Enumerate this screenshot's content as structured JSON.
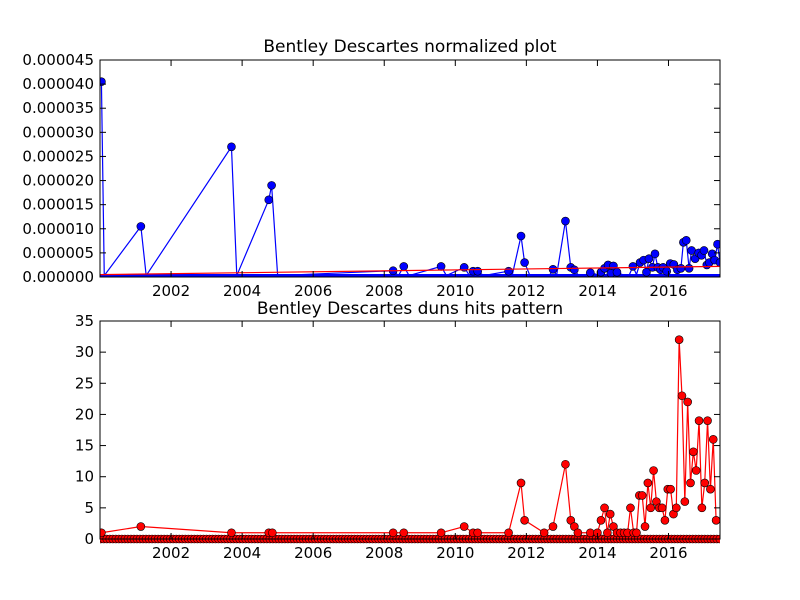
{
  "chart_data": [
    {
      "type": "line",
      "title": "Bentley Descartes normalized plot",
      "xlabel": "",
      "ylabel": "",
      "xlim": [
        2000.0,
        2017.45
      ],
      "ylim": [
        0,
        4.5e-05
      ],
      "xticks": [
        2002,
        2004,
        2006,
        2008,
        2010,
        2012,
        2014,
        2016
      ],
      "yticks": [
        "0.000000",
        "0.000005",
        "0.000010",
        "0.000015",
        "0.000020",
        "0.000025",
        "0.000030",
        "0.000035",
        "0.000040",
        "0.000045"
      ],
      "grid": false,
      "series": [
        {
          "color": "#0000ff",
          "marker": "circle",
          "points": [
            [
              2000.04,
              4.05e-05
            ],
            [
              2000.12,
              3e-07
            ],
            [
              2001.15,
              1.05e-05
            ],
            [
              2001.3,
              3e-07
            ],
            [
              2003.7,
              2.7e-05
            ],
            [
              2003.85,
              3e-07
            ],
            [
              2004.75,
              1.6e-05
            ],
            [
              2004.83,
              1.9e-05
            ],
            [
              2005.0,
              3e-07
            ],
            [
              2008.25,
              1.3e-06
            ],
            [
              2008.4,
              3e-07
            ],
            [
              2008.55,
              2.2e-06
            ],
            [
              2008.7,
              3e-07
            ],
            [
              2009.6,
              2.2e-06
            ],
            [
              2009.75,
              3e-07
            ],
            [
              2010.25,
              2e-06
            ],
            [
              2010.4,
              3e-07
            ],
            [
              2010.5,
              1.2e-06
            ],
            [
              2010.63,
              1.2e-06
            ],
            [
              2010.8,
              3e-07
            ],
            [
              2011.5,
              1.2e-06
            ],
            [
              2011.6,
              3e-07
            ],
            [
              2011.85,
              8.5e-06
            ],
            [
              2011.95,
              3e-06
            ],
            [
              2012.1,
              3e-07
            ],
            [
              2012.5,
              5e-07
            ],
            [
              2012.65,
              3e-07
            ],
            [
              2012.75,
              1.6e-06
            ],
            [
              2012.85,
              3e-07
            ],
            [
              2013.1,
              1.16e-05
            ],
            [
              2013.25,
              2e-06
            ],
            [
              2013.35,
              1.5e-06
            ],
            [
              2013.45,
              5e-07
            ],
            [
              2013.6,
              3e-07
            ],
            [
              2013.8,
              9e-07
            ],
            [
              2014.0,
              5e-07
            ],
            [
              2014.1,
              1e-06
            ],
            [
              2014.2,
              1.8e-06
            ],
            [
              2014.3,
              2.5e-06
            ],
            [
              2014.38,
              8e-07
            ],
            [
              2014.45,
              2.3e-06
            ],
            [
              2014.55,
              1e-06
            ],
            [
              2014.7,
              5e-07
            ],
            [
              2014.8,
              5e-07
            ],
            [
              2014.9,
              5e-07
            ],
            [
              2015.0,
              2.2e-06
            ],
            [
              2015.1,
              5e-07
            ],
            [
              2015.2,
              3e-06
            ],
            [
              2015.3,
              3.5e-06
            ],
            [
              2015.38,
              1e-06
            ],
            [
              2015.45,
              3.8e-06
            ],
            [
              2015.55,
              2e-06
            ],
            [
              2015.62,
              4.8e-06
            ],
            [
              2015.7,
              2e-06
            ],
            [
              2015.78,
              1.5e-06
            ],
            [
              2015.85,
              2e-06
            ],
            [
              2015.95,
              1.2e-06
            ],
            [
              2016.05,
              2.8e-06
            ],
            [
              2016.15,
              2.6e-06
            ],
            [
              2016.25,
              1.5e-06
            ],
            [
              2016.35,
              1.8e-06
            ],
            [
              2016.42,
              7.2e-06
            ],
            [
              2016.5,
              7.6e-06
            ],
            [
              2016.58,
              1.8e-06
            ],
            [
              2016.65,
              5.5e-06
            ],
            [
              2016.75,
              3.8e-06
            ],
            [
              2016.85,
              5e-06
            ],
            [
              2016.93,
              4.5e-06
            ],
            [
              2017.0,
              5.5e-06
            ],
            [
              2017.08,
              2.5e-06
            ],
            [
              2017.15,
              3e-06
            ],
            [
              2017.23,
              4.8e-06
            ],
            [
              2017.3,
              3.5e-06
            ],
            [
              2017.38,
              6.8e-06
            ],
            [
              2017.45,
              3e-06
            ]
          ]
        },
        {
          "color": "#ff0000",
          "marker": "none",
          "points": [
            [
              2000.0,
              5e-07
            ],
            [
              2017.45,
              2.2e-06
            ]
          ]
        }
      ]
    },
    {
      "type": "line",
      "title": "Bentley Descartes duns hits pattern",
      "xlabel": "",
      "ylabel": "",
      "xlim": [
        2000.0,
        2017.45
      ],
      "ylim": [
        0,
        35
      ],
      "xticks": [
        2002,
        2004,
        2006,
        2008,
        2010,
        2012,
        2014,
        2016
      ],
      "yticks": [
        "0",
        "5",
        "10",
        "15",
        "20",
        "25",
        "30",
        "35"
      ],
      "grid": false,
      "series": [
        {
          "color": "#ff0000",
          "marker": "circle",
          "marker_color": "#ff0000",
          "baseline_markers": true,
          "points": [
            [
              2000.04,
              1
            ],
            [
              2001.15,
              2
            ],
            [
              2003.7,
              1
            ],
            [
              2004.75,
              1
            ],
            [
              2004.85,
              1
            ],
            [
              2008.25,
              1
            ],
            [
              2008.55,
              1
            ],
            [
              2009.6,
              1
            ],
            [
              2010.25,
              2
            ],
            [
              2010.5,
              1
            ],
            [
              2010.63,
              1
            ],
            [
              2011.5,
              1
            ],
            [
              2011.85,
              9
            ],
            [
              2011.95,
              3
            ],
            [
              2012.5,
              1
            ],
            [
              2012.75,
              2
            ],
            [
              2013.1,
              12
            ],
            [
              2013.25,
              3
            ],
            [
              2013.35,
              2
            ],
            [
              2013.45,
              1
            ],
            [
              2013.8,
              1
            ],
            [
              2014.0,
              1
            ],
            [
              2014.1,
              3
            ],
            [
              2014.2,
              5
            ],
            [
              2014.28,
              1
            ],
            [
              2014.36,
              4
            ],
            [
              2014.45,
              2
            ],
            [
              2014.55,
              1
            ],
            [
              2014.65,
              1
            ],
            [
              2014.75,
              1
            ],
            [
              2014.85,
              1
            ],
            [
              2014.93,
              5
            ],
            [
              2015.02,
              1
            ],
            [
              2015.1,
              1
            ],
            [
              2015.18,
              7
            ],
            [
              2015.26,
              7
            ],
            [
              2015.34,
              2
            ],
            [
              2015.42,
              9
            ],
            [
              2015.5,
              5
            ],
            [
              2015.58,
              11
            ],
            [
              2015.66,
              6
            ],
            [
              2015.74,
              5
            ],
            [
              2015.82,
              5
            ],
            [
              2015.9,
              3
            ],
            [
              2015.98,
              8
            ],
            [
              2016.06,
              8
            ],
            [
              2016.14,
              4
            ],
            [
              2016.22,
              5
            ],
            [
              2016.3,
              32
            ],
            [
              2016.38,
              23
            ],
            [
              2016.46,
              6
            ],
            [
              2016.54,
              22
            ],
            [
              2016.62,
              9
            ],
            [
              2016.7,
              14
            ],
            [
              2016.78,
              11
            ],
            [
              2016.86,
              19
            ],
            [
              2016.94,
              5
            ],
            [
              2017.02,
              9
            ],
            [
              2017.1,
              19
            ],
            [
              2017.18,
              8
            ],
            [
              2017.26,
              16
            ],
            [
              2017.34,
              3
            ]
          ]
        }
      ]
    }
  ]
}
